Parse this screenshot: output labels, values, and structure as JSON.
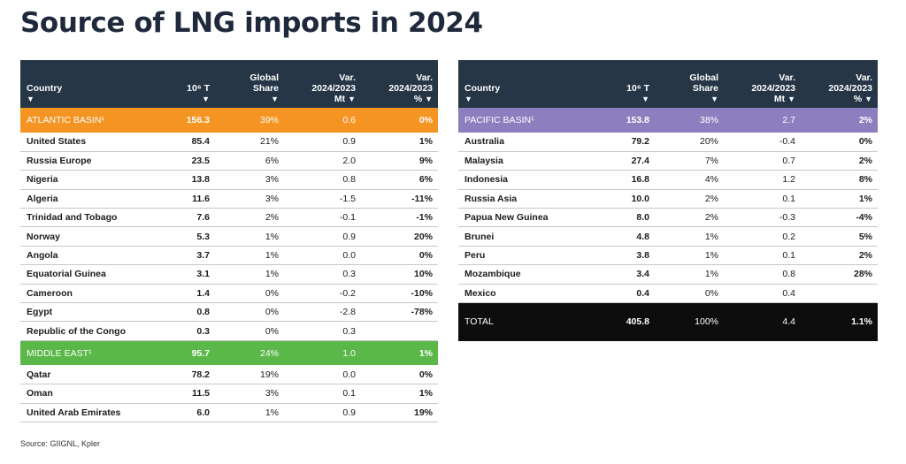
{
  "title": "Source of LNG imports in 2024",
  "source": "Source: GIIGNL, Kpler",
  "headers": {
    "country": "Country",
    "volume": "10⁶ T",
    "share_l1": "Global",
    "share_l2": "Share",
    "var_mt_l1": "Var.",
    "var_mt_l2": "2024/2023",
    "var_mt_l3": "Mt",
    "var_pct_l1": "Var.",
    "var_pct_l2": "2024/2023",
    "var_pct_l3": "%",
    "arrow": "▼"
  },
  "colors": {
    "header": "#263646",
    "atlantic": "#f39423",
    "middle_east": "#59b848",
    "pacific": "#8d7fbf",
    "total": "#0d0d0d"
  },
  "left": {
    "atlantic": {
      "name": "ATLANTIC BASIN¹",
      "volume": "156.3",
      "share": "39%",
      "var_mt": "0.6",
      "var_pct": "0%"
    },
    "atlantic_rows": [
      {
        "country": "United States",
        "volume": "85.4",
        "share": "21%",
        "var_mt": "0.9",
        "var_pct": "1%"
      },
      {
        "country": "Russia Europe",
        "volume": "23.5",
        "share": "6%",
        "var_mt": "2.0",
        "var_pct": "9%"
      },
      {
        "country": "Nigeria",
        "volume": "13.8",
        "share": "3%",
        "var_mt": "0.8",
        "var_pct": "6%"
      },
      {
        "country": "Algeria",
        "volume": "11.6",
        "share": "3%",
        "var_mt": "-1.5",
        "var_pct": "-11%"
      },
      {
        "country": "Trinidad and Tobago",
        "volume": "7.6",
        "share": "2%",
        "var_mt": "-0.1",
        "var_pct": "-1%"
      },
      {
        "country": "Norway",
        "volume": "5.3",
        "share": "1%",
        "var_mt": "0.9",
        "var_pct": "20%"
      },
      {
        "country": "Angola",
        "volume": "3.7",
        "share": "1%",
        "var_mt": "0.0",
        "var_pct": "0%"
      },
      {
        "country": "Equatorial Guinea",
        "volume": "3.1",
        "share": "1%",
        "var_mt": "0.3",
        "var_pct": "10%"
      },
      {
        "country": "Cameroon",
        "volume": "1.4",
        "share": "0%",
        "var_mt": "-0.2",
        "var_pct": "-10%"
      },
      {
        "country": "Egypt",
        "volume": "0.8",
        "share": "0%",
        "var_mt": "-2.8",
        "var_pct": "-78%"
      },
      {
        "country": "Republic of the Congo",
        "volume": "0.3",
        "share": "0%",
        "var_mt": "0.3",
        "var_pct": ""
      }
    ],
    "middle_east": {
      "name": "MIDDLE EAST¹",
      "volume": "95.7",
      "share": "24%",
      "var_mt": "1.0",
      "var_pct": "1%"
    },
    "middle_east_rows": [
      {
        "country": "Qatar",
        "volume": "78.2",
        "share": "19%",
        "var_mt": "0.0",
        "var_pct": "0%"
      },
      {
        "country": "Oman",
        "volume": "11.5",
        "share": "3%",
        "var_mt": "0.1",
        "var_pct": "1%"
      },
      {
        "country": "United Arab Emirates",
        "volume": "6.0",
        "share": "1%",
        "var_mt": "0.9",
        "var_pct": "19%"
      }
    ]
  },
  "right": {
    "pacific": {
      "name": "PACIFIC BASIN¹",
      "volume": "153.8",
      "share": "38%",
      "var_mt": "2.7",
      "var_pct": "2%"
    },
    "pacific_rows": [
      {
        "country": "Australia",
        "volume": "79.2",
        "share": "20%",
        "var_mt": "-0.4",
        "var_pct": "0%"
      },
      {
        "country": "Malaysia",
        "volume": "27.4",
        "share": "7%",
        "var_mt": "0.7",
        "var_pct": "2%"
      },
      {
        "country": "Indonesia",
        "volume": "16.8",
        "share": "4%",
        "var_mt": "1.2",
        "var_pct": "8%"
      },
      {
        "country": "Russia Asia",
        "volume": "10.0",
        "share": "2%",
        "var_mt": "0.1",
        "var_pct": "1%"
      },
      {
        "country": "Papua New Guinea",
        "volume": "8.0",
        "share": "2%",
        "var_mt": "-0.3",
        "var_pct": "-4%"
      },
      {
        "country": "Brunei",
        "volume": "4.8",
        "share": "1%",
        "var_mt": "0.2",
        "var_pct": "5%"
      },
      {
        "country": "Peru",
        "volume": "3.8",
        "share": "1%",
        "var_mt": "0.1",
        "var_pct": "2%"
      },
      {
        "country": "Mozambique",
        "volume": "3.4",
        "share": "1%",
        "var_mt": "0.8",
        "var_pct": "28%"
      },
      {
        "country": "Mexico",
        "volume": "0.4",
        "share": "0%",
        "var_mt": "0.4",
        "var_pct": ""
      }
    ],
    "total": {
      "name": "TOTAL",
      "volume": "405.8",
      "share": "100%",
      "var_mt": "4.4",
      "var_pct": "1.1%"
    }
  }
}
